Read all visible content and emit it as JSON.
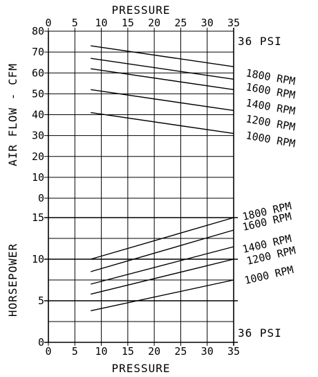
{
  "chart_data": [
    {
      "type": "line",
      "title": "",
      "xlabel": "PRESSURE",
      "ylabel": "AIR FLOW - CFM",
      "xlim": [
        0,
        35
      ],
      "ylim": [
        0,
        80
      ],
      "xticks": [
        "0",
        "5",
        "10",
        "15",
        "20",
        "25",
        "30",
        "35"
      ],
      "yticks": [
        "0",
        "10",
        "20",
        "30",
        "40",
        "50",
        "60",
        "70",
        "80"
      ],
      "right_label": "36 PSI",
      "grid": true,
      "series": [
        {
          "name": "1800 RPM",
          "x": [
            8,
            35
          ],
          "y": [
            73,
            63
          ]
        },
        {
          "name": "1600 RPM",
          "x": [
            8,
            35
          ],
          "y": [
            67,
            57
          ]
        },
        {
          "name": "1400 RPM",
          "x": [
            8,
            35
          ],
          "y": [
            62,
            52
          ]
        },
        {
          "name": "1200 RPM",
          "x": [
            8,
            35
          ],
          "y": [
            52,
            42
          ]
        },
        {
          "name": "1000 RPM",
          "x": [
            8,
            35
          ],
          "y": [
            41,
            31
          ]
        }
      ]
    },
    {
      "type": "line",
      "title": "",
      "xlabel": "PRESSURE",
      "ylabel": "HORSEPOWER",
      "xlim": [
        0,
        35
      ],
      "ylim": [
        0,
        15
      ],
      "xticks": [
        "0",
        "5",
        "10",
        "15",
        "20",
        "25",
        "30",
        "35"
      ],
      "yticks": [
        "0",
        "5",
        "10",
        "15"
      ],
      "right_label": "36 PSI",
      "grid": true,
      "series": [
        {
          "name": "1800 RPM",
          "x": [
            8,
            35
          ],
          "y": [
            10,
            15
          ]
        },
        {
          "name": "1600 RPM",
          "x": [
            8,
            35
          ],
          "y": [
            8.5,
            13.5
          ]
        },
        {
          "name": "1400 RPM",
          "x": [
            8,
            35
          ],
          "y": [
            7,
            11.5
          ]
        },
        {
          "name": "1200 RPM",
          "x": [
            8,
            35
          ],
          "y": [
            5.8,
            10
          ]
        },
        {
          "name": "1000 RPM",
          "x": [
            8,
            35
          ],
          "y": [
            3.8,
            7.5
          ]
        }
      ]
    }
  ]
}
